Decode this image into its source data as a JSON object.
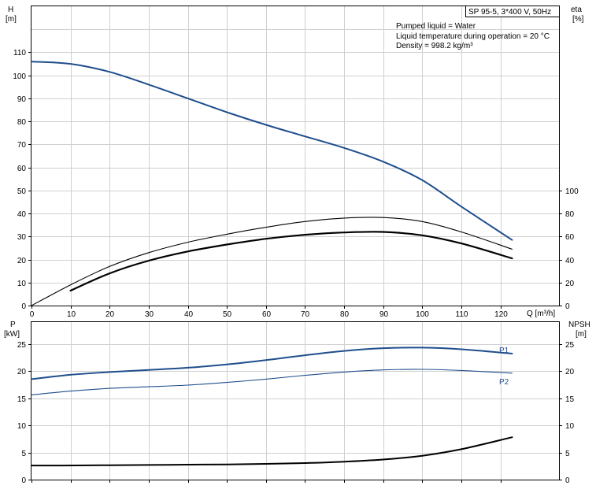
{
  "colors": {
    "head": "#1f4e8c",
    "efficiency": "#000000",
    "power": "#1f4e8c",
    "npsh": "#000000",
    "grid": "#d0d0d0"
  },
  "chart_data": [
    {
      "type": "line",
      "panel": "top",
      "title_box": "SP 95-5, 3*400 V, 50Hz",
      "info_lines": [
        "Pumped liquid = Water",
        "Liquid temperature during operation = 20 °C",
        "Density = 998.2 kg/m³"
      ],
      "xlabel": "Q [m³/h]",
      "xlim": [
        0,
        135
      ],
      "x_ticks": [
        0,
        10,
        20,
        30,
        40,
        50,
        60,
        70,
        80,
        90,
        100,
        110,
        120
      ],
      "y_left_label": [
        "H",
        "[m]"
      ],
      "y_left_lim": [
        0,
        130
      ],
      "y_left_ticks": [
        0,
        10,
        20,
        30,
        40,
        50,
        60,
        70,
        80,
        90,
        100,
        110
      ],
      "y_right_label": [
        "eta",
        "[%]"
      ],
      "y_right_lim": [
        0,
        260
      ],
      "y_right_ticks": [
        0,
        20,
        40,
        60,
        80,
        100
      ],
      "grid": true,
      "series": [
        {
          "key": "head",
          "axis": "left",
          "x": [
            0,
            10,
            20,
            30,
            40,
            50,
            60,
            70,
            80,
            90,
            100,
            110,
            123
          ],
          "y": [
            106,
            105,
            101.5,
            96,
            90,
            84,
            78.5,
            73.5,
            68.5,
            62.5,
            54.5,
            43,
            28.5
          ]
        },
        {
          "key": "efficiency",
          "axis": "right",
          "x": [
            0,
            10,
            20,
            30,
            40,
            50,
            60,
            70,
            80,
            90,
            100,
            110,
            123
          ],
          "y": [
            0,
            18,
            34,
            46,
            55,
            62,
            68,
            73,
            76,
            76.5,
            73,
            64,
            49
          ]
        },
        {
          "key": "efficiency-pump",
          "axis": "right",
          "x": [
            10,
            20,
            30,
            40,
            50,
            60,
            70,
            80,
            90,
            100,
            110,
            123
          ],
          "y": [
            13,
            28,
            39,
            47,
            53,
            58,
            61.5,
            63.5,
            64,
            61,
            54,
            41
          ]
        }
      ]
    },
    {
      "type": "line",
      "panel": "bottom",
      "xlim": [
        0,
        135
      ],
      "y_left_label": [
        "P",
        "[kW]"
      ],
      "y_left_lim": [
        0,
        29
      ],
      "y_left_ticks": [
        0,
        5,
        10,
        15,
        20,
        25
      ],
      "y_right_label": [
        "NPSH",
        "[m]"
      ],
      "y_right_lim": [
        0,
        29
      ],
      "y_right_ticks": [
        0,
        5,
        10,
        15,
        20,
        25
      ],
      "grid": true,
      "series": [
        {
          "key": "p1",
          "name": "P1",
          "axis": "left",
          "x": [
            0,
            10,
            20,
            30,
            40,
            50,
            60,
            70,
            80,
            90,
            100,
            110,
            123
          ],
          "y": [
            18.5,
            19.3,
            19.8,
            20.2,
            20.6,
            21.2,
            22,
            22.9,
            23.7,
            24.2,
            24.3,
            24,
            23.2
          ]
        },
        {
          "key": "p2",
          "name": "P2",
          "axis": "left",
          "x": [
            0,
            10,
            20,
            30,
            40,
            50,
            60,
            70,
            80,
            90,
            100,
            110,
            123
          ],
          "y": [
            15.6,
            16.3,
            16.8,
            17.1,
            17.4,
            17.9,
            18.5,
            19.2,
            19.8,
            20.2,
            20.3,
            20.1,
            19.6
          ]
        },
        {
          "key": "npsh",
          "axis": "right",
          "x": [
            0,
            8,
            20,
            30,
            40,
            50,
            60,
            70,
            80,
            90,
            100,
            110,
            123
          ],
          "y": [
            2.6,
            2.6,
            2.65,
            2.7,
            2.75,
            2.8,
            2.9,
            3.05,
            3.3,
            3.7,
            4.4,
            5.6,
            7.8
          ]
        }
      ]
    }
  ]
}
